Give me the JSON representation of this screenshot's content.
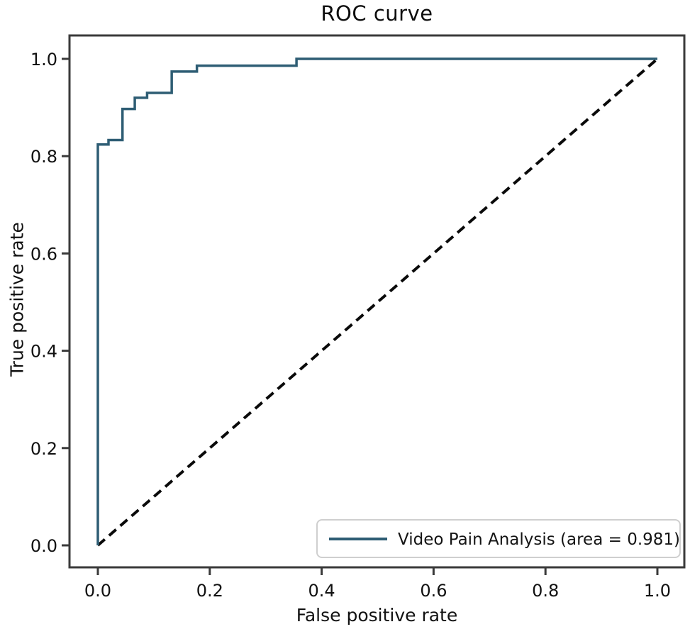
{
  "figure": {
    "title": "ROC curve",
    "x_axis_label": "False positive rate",
    "y_axis_label": "True positive rate"
  },
  "chart_data": {
    "type": "line",
    "subtype": "roc-step-curve",
    "title": "ROC curve",
    "xlabel": "False positive rate",
    "ylabel": "True positive rate",
    "xlim": [
      -0.05,
      1.05
    ],
    "ylim": [
      -0.05,
      1.05
    ],
    "grid": false,
    "x_ticks": [
      {
        "value": 0.0,
        "label": "0.0"
      },
      {
        "value": 0.2,
        "label": "0.2"
      },
      {
        "value": 0.4,
        "label": "0.4"
      },
      {
        "value": 0.6,
        "label": "0.6"
      },
      {
        "value": 0.8,
        "label": "0.8"
      },
      {
        "value": 1.0,
        "label": "1.0"
      }
    ],
    "y_ticks": [
      {
        "value": 0.0,
        "label": "0.0"
      },
      {
        "value": 0.2,
        "label": "0.2"
      },
      {
        "value": 0.4,
        "label": "0.4"
      },
      {
        "value": 0.6,
        "label": "0.6"
      },
      {
        "value": 0.8,
        "label": "0.8"
      },
      {
        "value": 1.0,
        "label": "1.0"
      }
    ],
    "style": {
      "frame_color": "#3a3a3a",
      "roc_line_color": "#2e5d74",
      "diagonal_color": "#0a0a0a",
      "legend_border_color": "#cfcfcf"
    },
    "legend": {
      "position": "lower right",
      "entries": [
        {
          "label": "Video Pain Analysis (area = 0.981)",
          "color": "#2e5d74"
        }
      ]
    },
    "series": [
      {
        "name": "Video Pain Analysis",
        "auc": 0.981,
        "color": "#2e5d74",
        "line_style": "solid",
        "points": [
          [
            0.0,
            0.0
          ],
          [
            0.0,
            0.824
          ],
          [
            0.019,
            0.824
          ],
          [
            0.019,
            0.833
          ],
          [
            0.044,
            0.833
          ],
          [
            0.044,
            0.897
          ],
          [
            0.066,
            0.897
          ],
          [
            0.066,
            0.92
          ],
          [
            0.088,
            0.92
          ],
          [
            0.088,
            0.93
          ],
          [
            0.132,
            0.93
          ],
          [
            0.132,
            0.974
          ],
          [
            0.177,
            0.974
          ],
          [
            0.177,
            0.986
          ],
          [
            0.355,
            0.986
          ],
          [
            0.355,
            1.0
          ],
          [
            1.0,
            1.0
          ]
        ]
      },
      {
        "name": "chance-diagonal",
        "color": "#0a0a0a",
        "line_style": "dashed",
        "points": [
          [
            0.0,
            0.0
          ],
          [
            1.0,
            1.0
          ]
        ]
      }
    ]
  }
}
